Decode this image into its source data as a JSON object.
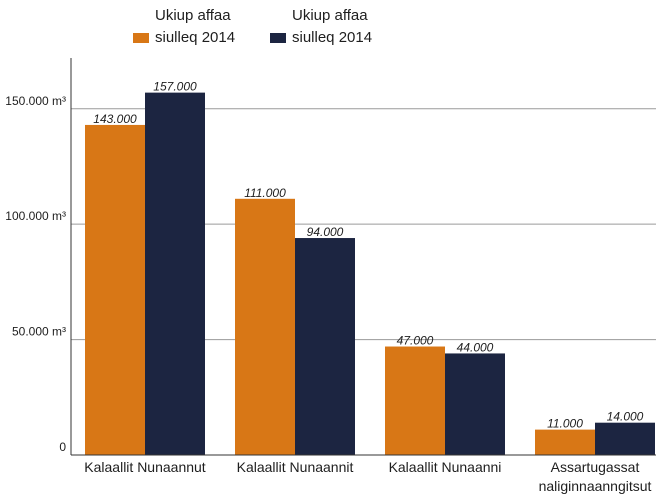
{
  "chart_data": {
    "type": "bar",
    "categories": [
      "Kalaallit Nunaannut",
      "Kalaallit Nunaannit",
      "Kalaallit Nunaanni",
      "Assartugassat naliginnaanngitsut"
    ],
    "series": [
      {
        "name": "Ukiup affaa siulleq 2014",
        "color": "#d87716",
        "values": [
          143000,
          111000,
          47000,
          11000
        ],
        "value_labels": [
          "143.000",
          "111.000",
          "47.000",
          "11.000"
        ]
      },
      {
        "name": "Ukiup affaa siulleq 2014",
        "color": "#1c2541",
        "values": [
          157000,
          94000,
          44000,
          14000
        ],
        "value_labels": [
          "157.000",
          "94.000",
          "44.000",
          "14.000"
        ]
      }
    ],
    "yticks": [
      {
        "value": 0,
        "label": "0"
      },
      {
        "value": 50000,
        "label": "50.000 m³"
      },
      {
        "value": 100000,
        "label": "100.000 m³"
      },
      {
        "value": 150000,
        "label": "150.000 m³"
      }
    ],
    "ylim": [
      0,
      172000
    ],
    "grid": true,
    "legend_position": "top-left",
    "title": "",
    "xlabel": "",
    "ylabel": ""
  }
}
